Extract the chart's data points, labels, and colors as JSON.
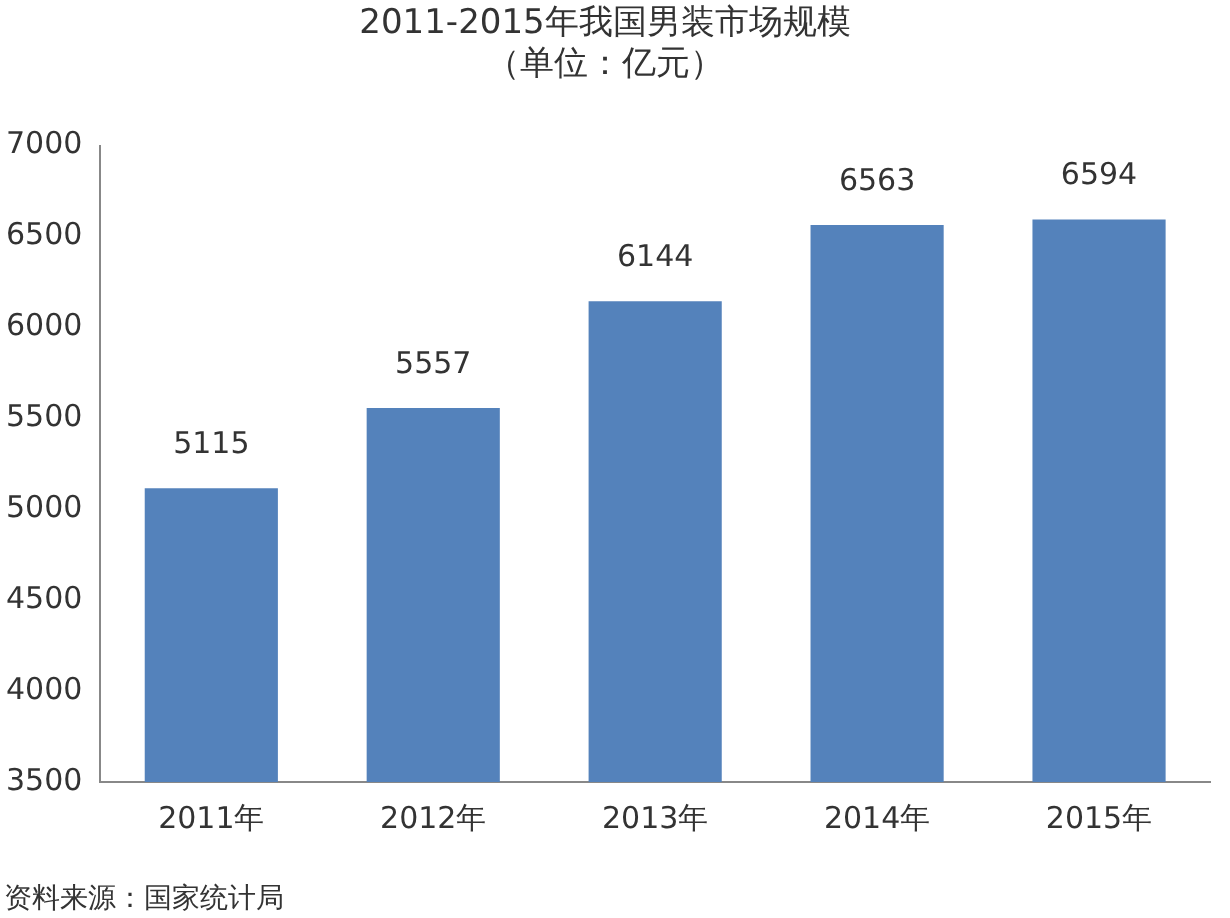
{
  "chart_data": {
    "type": "bar",
    "title": [
      "2011-2015年我国男装市场规模",
      "（单位：亿元）"
    ],
    "categories": [
      "2011年",
      "2012年",
      "2013年",
      "2014年",
      "2015年"
    ],
    "values": [
      5115,
      5557,
      6144,
      6563,
      6594
    ],
    "color": "#5482bb",
    "ylim": [
      3500,
      7000
    ],
    "yticks": [
      3500,
      4000,
      4500,
      5000,
      5500,
      6000,
      6500,
      7000
    ],
    "grid": false,
    "legend": false,
    "data_labels": true,
    "annotations": [
      "资料来源：国家统计局"
    ]
  }
}
